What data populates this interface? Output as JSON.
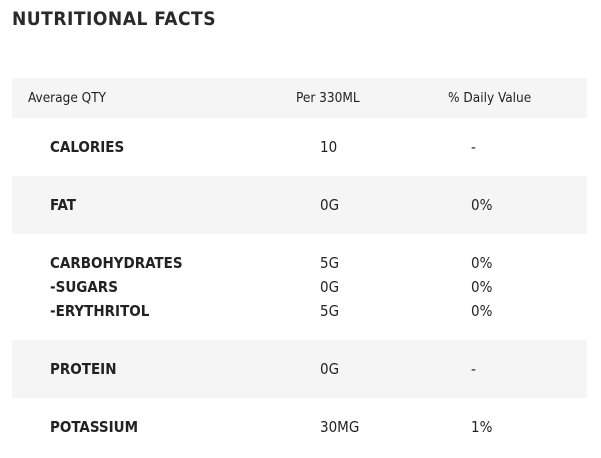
{
  "header": {
    "title": "NUTRITIONAL FACTS"
  },
  "table": {
    "columns": [
      "Average QTY",
      "Per 330ML",
      "% Daily Value"
    ],
    "rows": [
      [
        [
          "CALORIES"
        ],
        [
          "10"
        ],
        [
          "-"
        ]
      ],
      [
        [
          "FAT"
        ],
        [
          "0G"
        ],
        [
          "0%"
        ]
      ],
      [
        [
          "CARBOHYDRATES",
          "-SUGARS",
          "-ERYTHRITOL"
        ],
        [
          "5G",
          "0G",
          "5G"
        ],
        [
          "0%",
          "0%",
          "0%"
        ]
      ],
      [
        [
          "PROTEIN"
        ],
        [
          "0G"
        ],
        [
          "-"
        ]
      ],
      [
        [
          "POTASSIUM"
        ],
        [
          "30MG"
        ],
        [
          "1%"
        ]
      ]
    ]
  }
}
